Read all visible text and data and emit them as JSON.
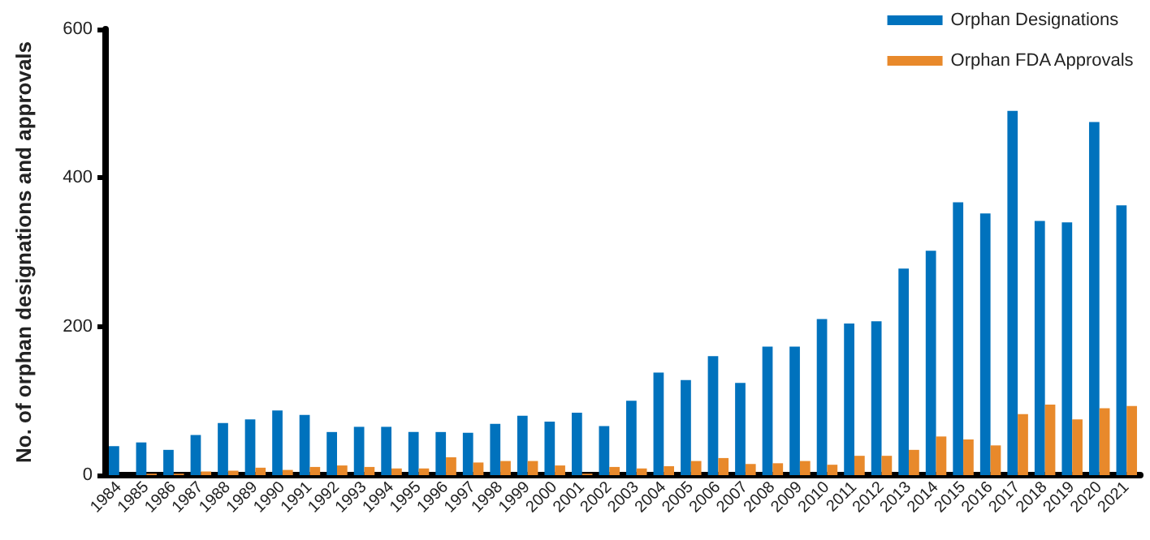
{
  "chart_data": {
    "type": "bar",
    "ylabel": "No. of orphan designations and approvals",
    "categories": [
      "1984",
      "1985",
      "1986",
      "1987",
      "1988",
      "1989",
      "1990",
      "1991",
      "1992",
      "1993",
      "1994",
      "1995",
      "1996",
      "1997",
      "1998",
      "1999",
      "2000",
      "2001",
      "2002",
      "2003",
      "2004",
      "2005",
      "2006",
      "2007",
      "2008",
      "2009",
      "2010",
      "2011",
      "2012",
      "2013",
      "2014",
      "2015",
      "2016",
      "2017",
      "2018",
      "2019",
      "2020",
      "2021"
    ],
    "series": [
      {
        "name": "Orphan Designations",
        "color": "#0072bd",
        "values": [
          39,
          44,
          34,
          54,
          70,
          75,
          87,
          81,
          58,
          65,
          65,
          58,
          58,
          57,
          69,
          80,
          72,
          84,
          66,
          100,
          138,
          128,
          160,
          124,
          173,
          173,
          210,
          204,
          207,
          278,
          302,
          367,
          352,
          490,
          342,
          340,
          475,
          363
        ]
      },
      {
        "name": "Orphan FDA Approvals",
        "color": "#e8892b",
        "values": [
          0,
          2,
          2,
          5,
          6,
          10,
          7,
          11,
          13,
          11,
          9,
          9,
          24,
          17,
          19,
          19,
          13,
          2,
          11,
          9,
          12,
          19,
          23,
          15,
          16,
          19,
          14,
          26,
          26,
          34,
          52,
          48,
          40,
          82,
          95,
          75,
          90,
          93
        ]
      }
    ],
    "ylim": [
      0,
      600
    ],
    "yticks": [
      0,
      200,
      400,
      600
    ],
    "grid": false,
    "legend": "top right"
  }
}
